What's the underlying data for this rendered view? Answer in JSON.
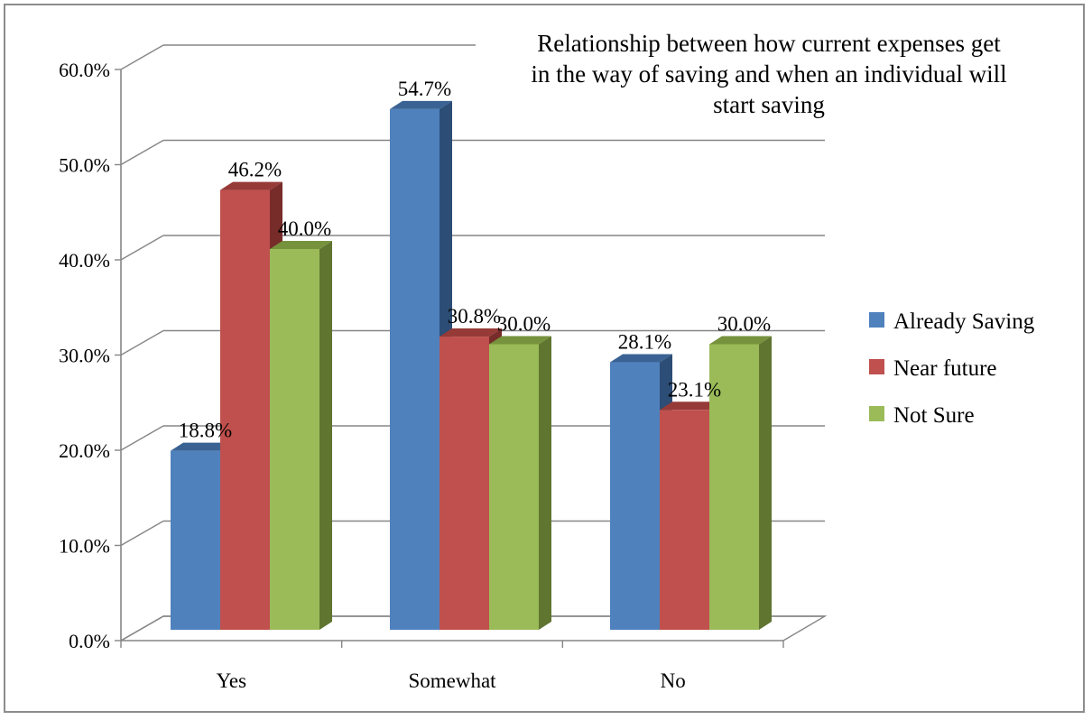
{
  "chart_data": {
    "type": "bar",
    "title_lines": [
      "Relationship between how current expenses get",
      "in the way of saving and when an individual will",
      "start saving"
    ],
    "categories": [
      "Yes",
      "Somewhat",
      "No"
    ],
    "series": [
      {
        "name": "Already Saving",
        "values": [
          18.8,
          54.7,
          28.1
        ],
        "labels": [
          "18.8%",
          "54.7%",
          "28.1%"
        ]
      },
      {
        "name": "Near future",
        "values": [
          46.2,
          30.8,
          23.1
        ],
        "labels": [
          "46.2%",
          "30.8%",
          "23.1%"
        ]
      },
      {
        "name": "Not Sure",
        "values": [
          40.0,
          30.0,
          30.0
        ],
        "labels": [
          "40.0%",
          "30.0%",
          "30.0%"
        ]
      }
    ],
    "ylim": [
      0,
      60
    ],
    "yticks": [
      0,
      10,
      20,
      30,
      40,
      50,
      60
    ],
    "ytick_labels": [
      "0.0%",
      "10.0%",
      "20.0%",
      "30.0%",
      "40.0%",
      "50.0%",
      "60.0%"
    ],
    "grid": true,
    "legend_position": "right",
    "style": "3d-clustered-column"
  },
  "colors": {
    "series_front": [
      "#4f81bd",
      "#c0504d",
      "#9bbb59"
    ],
    "series_side": [
      "#2c4d75",
      "#772c2a",
      "#5f7530"
    ],
    "series_top": [
      "#3a6394",
      "#963a38",
      "#76923c"
    ],
    "gridline": "#868686"
  }
}
